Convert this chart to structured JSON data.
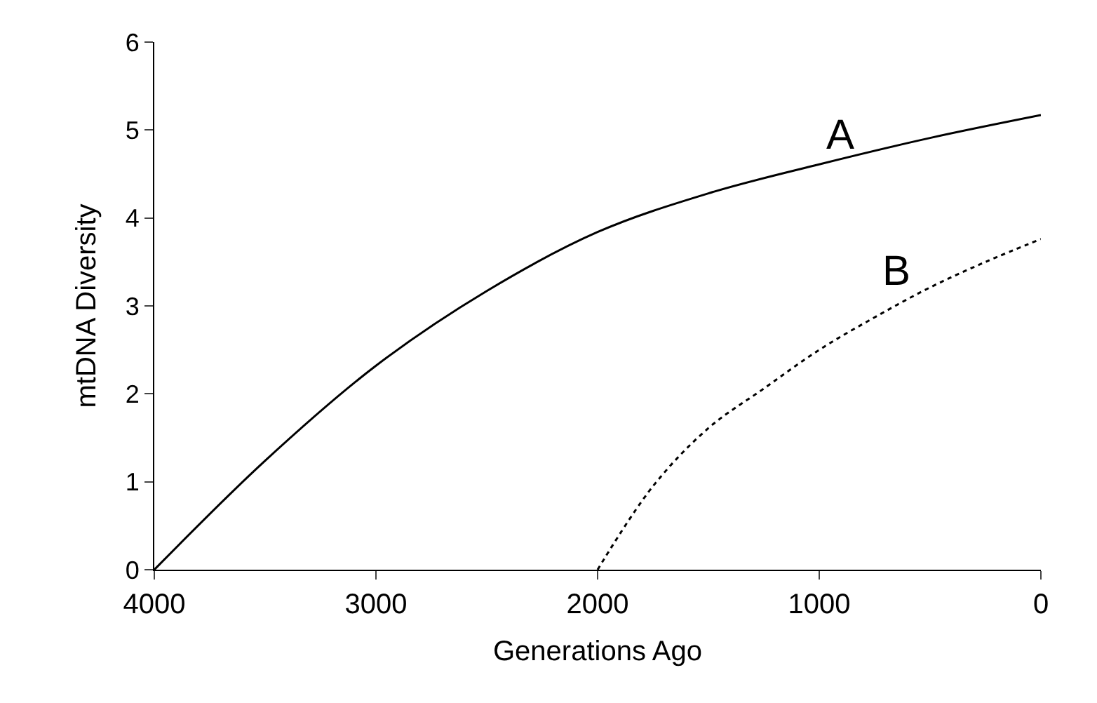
{
  "chart_data": {
    "type": "line",
    "xlabel": "Generations Ago",
    "ylabel": "mtDNA Diversity",
    "xlim": [
      4000,
      0
    ],
    "xticks": [
      4000,
      3000,
      2000,
      1000,
      0
    ],
    "ylim": [
      0,
      6
    ],
    "yticks": [
      0,
      1,
      2,
      3,
      4,
      5,
      6
    ],
    "legend": false,
    "marker": "none",
    "series": [
      {
        "color": "#000000",
        "line_style": "solid",
        "x": [
          4000,
          3500,
          3000,
          2500,
          2000,
          1500,
          1000,
          500,
          0
        ],
        "values": [
          0,
          1.24,
          2.32,
          3.17,
          3.84,
          4.28,
          4.61,
          4.91,
          5.17
        ]
      },
      {
        "color": "#000000",
        "line_style": "dotted",
        "x": [
          2000,
          1750,
          1500,
          1250,
          1000,
          750,
          500,
          250,
          0
        ],
        "values": [
          0,
          0.95,
          1.61,
          2.06,
          2.5,
          2.87,
          3.21,
          3.5,
          3.76
        ]
      }
    ],
    "annotations": [
      "A",
      "B"
    ]
  }
}
